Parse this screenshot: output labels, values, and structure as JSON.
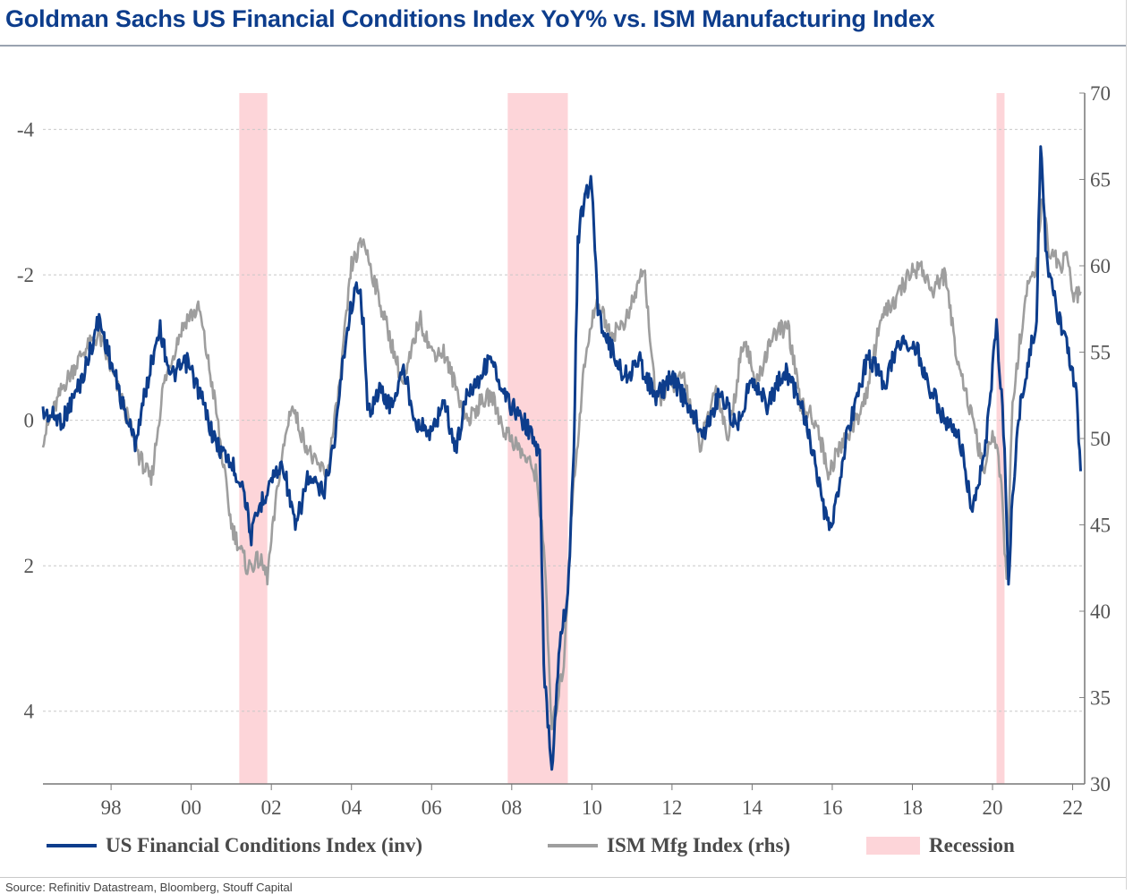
{
  "chart_data": {
    "type": "line",
    "title": "Goldman Sachs US Financial Conditions Index YoY% vs. ISM Manufacturing Index",
    "x_range": [
      1996.3,
      2022.3
    ],
    "x_ticks": [
      {
        "value": 1998,
        "label": "98"
      },
      {
        "value": 2000,
        "label": "00"
      },
      {
        "value": 2002,
        "label": "02"
      },
      {
        "value": 2004,
        "label": "04"
      },
      {
        "value": 2006,
        "label": "06"
      },
      {
        "value": 2008,
        "label": "08"
      },
      {
        "value": 2010,
        "label": "10"
      },
      {
        "value": 2012,
        "label": "12"
      },
      {
        "value": 2014,
        "label": "14"
      },
      {
        "value": 2016,
        "label": "16"
      },
      {
        "value": 2018,
        "label": "18"
      },
      {
        "value": 2020,
        "label": "20"
      },
      {
        "value": 2022,
        "label": "22"
      }
    ],
    "y_left": {
      "range": [
        5,
        -4.5
      ],
      "inverted": true,
      "ticks": [
        {
          "value": -4,
          "label": "-4"
        },
        {
          "value": -2,
          "label": "-2"
        },
        {
          "value": 0,
          "label": "0"
        },
        {
          "value": 2,
          "label": "2"
        },
        {
          "value": 4,
          "label": "4"
        }
      ]
    },
    "y_right": {
      "range": [
        30,
        70
      ],
      "ticks": [
        {
          "value": 30,
          "label": "30"
        },
        {
          "value": 35,
          "label": "35"
        },
        {
          "value": 40,
          "label": "40"
        },
        {
          "value": 45,
          "label": "45"
        },
        {
          "value": 50,
          "label": "50"
        },
        {
          "value": 55,
          "label": "55"
        },
        {
          "value": 60,
          "label": "60"
        },
        {
          "value": 65,
          "label": "65"
        },
        {
          "value": 70,
          "label": "70"
        }
      ]
    },
    "grid": "horizontal dashed",
    "recessions": [
      {
        "start": 2001.2,
        "end": 2001.9
      },
      {
        "start": 2007.9,
        "end": 2009.4
      },
      {
        "start": 2020.1,
        "end": 2020.3
      }
    ],
    "series": [
      {
        "name": "US Financial Conditions Index (inv)",
        "axis": "left",
        "color": "#0d3d8c",
        "points": [
          [
            1996.3,
            -0.1
          ],
          [
            1996.8,
            0
          ],
          [
            1997.3,
            -0.6
          ],
          [
            1997.7,
            -1.4
          ],
          [
            1998.0,
            -0.8
          ],
          [
            1998.3,
            -0.2
          ],
          [
            1998.6,
            0.3
          ],
          [
            1998.9,
            -0.5
          ],
          [
            1999.2,
            -1.3
          ],
          [
            1999.5,
            -0.6
          ],
          [
            1999.9,
            -0.8
          ],
          [
            2000.2,
            -0.4
          ],
          [
            2000.6,
            0.3
          ],
          [
            2001.0,
            0.6
          ],
          [
            2001.3,
            0.9
          ],
          [
            2001.5,
            1.6
          ],
          [
            2001.7,
            1.2
          ],
          [
            2002.0,
            0.8
          ],
          [
            2002.3,
            0.6
          ],
          [
            2002.6,
            1.5
          ],
          [
            2002.9,
            0.8
          ],
          [
            2003.3,
            1.0
          ],
          [
            2003.6,
            0.2
          ],
          [
            2003.8,
            -0.9
          ],
          [
            2004.0,
            -1.6
          ],
          [
            2004.2,
            -1.9
          ],
          [
            2004.3,
            -1.3
          ],
          [
            2004.4,
            -0.1
          ],
          [
            2004.7,
            -0.4
          ],
          [
            2005.0,
            -0.2
          ],
          [
            2005.3,
            -0.7
          ],
          [
            2005.6,
            0
          ],
          [
            2006.0,
            0.2
          ],
          [
            2006.3,
            -0.3
          ],
          [
            2006.6,
            0.4
          ],
          [
            2006.9,
            -0.4
          ],
          [
            2007.2,
            -0.6
          ],
          [
            2007.5,
            -0.9
          ],
          [
            2007.7,
            -0.4
          ],
          [
            2008.0,
            -0.2
          ],
          [
            2008.4,
            0.1
          ],
          [
            2008.7,
            0.5
          ],
          [
            2008.8,
            3.4
          ],
          [
            2009.0,
            4.8
          ],
          [
            2009.2,
            3.0
          ],
          [
            2009.4,
            2.4
          ],
          [
            2009.55,
            0.5
          ],
          [
            2009.65,
            -2.5
          ],
          [
            2009.8,
            -3.0
          ],
          [
            2010.0,
            -3.3
          ],
          [
            2010.15,
            -1.5
          ],
          [
            2010.4,
            -1.1
          ],
          [
            2010.8,
            -0.6
          ],
          [
            2011.2,
            -0.8
          ],
          [
            2011.6,
            -0.3
          ],
          [
            2012.0,
            -0.6
          ],
          [
            2012.4,
            -0.2
          ],
          [
            2012.8,
            0.2
          ],
          [
            2013.2,
            -0.4
          ],
          [
            2013.6,
            0.1
          ],
          [
            2014.0,
            -0.6
          ],
          [
            2014.4,
            -0.2
          ],
          [
            2014.8,
            -0.7
          ],
          [
            2015.2,
            -0.3
          ],
          [
            2015.5,
            0.4
          ],
          [
            2015.8,
            1.3
          ],
          [
            2016.0,
            1.5
          ],
          [
            2016.3,
            0.4
          ],
          [
            2016.6,
            -0.3
          ],
          [
            2016.9,
            -0.9
          ],
          [
            2017.3,
            -0.5
          ],
          [
            2017.7,
            -1.1
          ],
          [
            2018.1,
            -1.0
          ],
          [
            2018.4,
            -0.5
          ],
          [
            2018.8,
            0
          ],
          [
            2019.2,
            0.3
          ],
          [
            2019.5,
            1.3
          ],
          [
            2019.8,
            0.5
          ],
          [
            2020.1,
            -1.3
          ],
          [
            2020.3,
            0.3
          ],
          [
            2020.4,
            2.3
          ],
          [
            2020.5,
            1.0
          ],
          [
            2020.7,
            -0.3
          ],
          [
            2020.9,
            -0.8
          ],
          [
            2021.1,
            -1.4
          ],
          [
            2021.2,
            -3.8
          ],
          [
            2021.35,
            -2.2
          ],
          [
            2021.6,
            -1.5
          ],
          [
            2021.9,
            -0.9
          ],
          [
            2022.1,
            -0.3
          ],
          [
            2022.2,
            0.7
          ]
        ]
      },
      {
        "name": "ISM Mfg Index (rhs)",
        "axis": "right",
        "color": "#9e9e9e",
        "points": [
          [
            1996.3,
            50
          ],
          [
            1996.8,
            53
          ],
          [
            1997.3,
            55
          ],
          [
            1997.7,
            56
          ],
          [
            1998.0,
            54
          ],
          [
            1998.3,
            52
          ],
          [
            1998.7,
            49
          ],
          [
            1999.0,
            47.5
          ],
          [
            1999.3,
            53
          ],
          [
            1999.7,
            56
          ],
          [
            1999.9,
            57
          ],
          [
            2000.2,
            57.5
          ],
          [
            2000.6,
            52
          ],
          [
            2001.0,
            45
          ],
          [
            2001.4,
            42.5
          ],
          [
            2001.7,
            43
          ],
          [
            2001.9,
            42
          ],
          [
            2002.2,
            48
          ],
          [
            2002.5,
            52
          ],
          [
            2002.8,
            50
          ],
          [
            2003.1,
            48.5
          ],
          [
            2003.4,
            48
          ],
          [
            2003.7,
            53
          ],
          [
            2004.0,
            60
          ],
          [
            2004.3,
            61.5
          ],
          [
            2004.7,
            58
          ],
          [
            2005.0,
            55.5
          ],
          [
            2005.3,
            53
          ],
          [
            2005.7,
            57
          ],
          [
            2006.0,
            55
          ],
          [
            2006.3,
            55
          ],
          [
            2006.6,
            53
          ],
          [
            2006.9,
            51
          ],
          [
            2007.2,
            52
          ],
          [
            2007.5,
            52.5
          ],
          [
            2007.8,
            50.5
          ],
          [
            2008.0,
            50
          ],
          [
            2008.3,
            49
          ],
          [
            2008.6,
            48
          ],
          [
            2008.8,
            44
          ],
          [
            2009.0,
            33
          ],
          [
            2009.3,
            37
          ],
          [
            2009.5,
            46
          ],
          [
            2009.8,
            54
          ],
          [
            2010.1,
            58
          ],
          [
            2010.5,
            56
          ],
          [
            2010.9,
            57
          ],
          [
            2011.3,
            60
          ],
          [
            2011.6,
            52
          ],
          [
            2011.9,
            53
          ],
          [
            2012.3,
            53.5
          ],
          [
            2012.7,
            49.5
          ],
          [
            2013.1,
            53
          ],
          [
            2013.4,
            50
          ],
          [
            2013.8,
            56
          ],
          [
            2014.1,
            53
          ],
          [
            2014.5,
            56
          ],
          [
            2014.9,
            56.5
          ],
          [
            2015.2,
            52
          ],
          [
            2015.6,
            51
          ],
          [
            2015.9,
            48
          ],
          [
            2016.2,
            49.5
          ],
          [
            2016.6,
            51
          ],
          [
            2016.9,
            53
          ],
          [
            2017.2,
            57
          ],
          [
            2017.6,
            58
          ],
          [
            2017.9,
            59.5
          ],
          [
            2018.2,
            60
          ],
          [
            2018.5,
            58.5
          ],
          [
            2018.8,
            59.5
          ],
          [
            2019.1,
            55
          ],
          [
            2019.5,
            51
          ],
          [
            2019.8,
            48
          ],
          [
            2020.0,
            50.5
          ],
          [
            2020.2,
            48
          ],
          [
            2020.35,
            41.5
          ],
          [
            2020.5,
            52
          ],
          [
            2020.7,
            56
          ],
          [
            2020.9,
            59
          ],
          [
            2021.1,
            60
          ],
          [
            2021.25,
            64
          ],
          [
            2021.4,
            61
          ],
          [
            2021.7,
            60
          ],
          [
            2021.9,
            60.5
          ],
          [
            2022.0,
            58
          ],
          [
            2022.2,
            58.5
          ]
        ]
      }
    ],
    "legend": [
      {
        "label": "US Financial Conditions Index (inv)",
        "kind": "line",
        "color": "#0d3d8c"
      },
      {
        "label": "ISM Mfg Index (rhs)",
        "kind": "line",
        "color": "#9e9e9e"
      },
      {
        "label": "Recession",
        "kind": "area",
        "color": "#fdd5d9"
      }
    ]
  },
  "footer": {
    "source": "Source: Refinitiv Datastream, Bloomberg, Stouff Capital"
  }
}
